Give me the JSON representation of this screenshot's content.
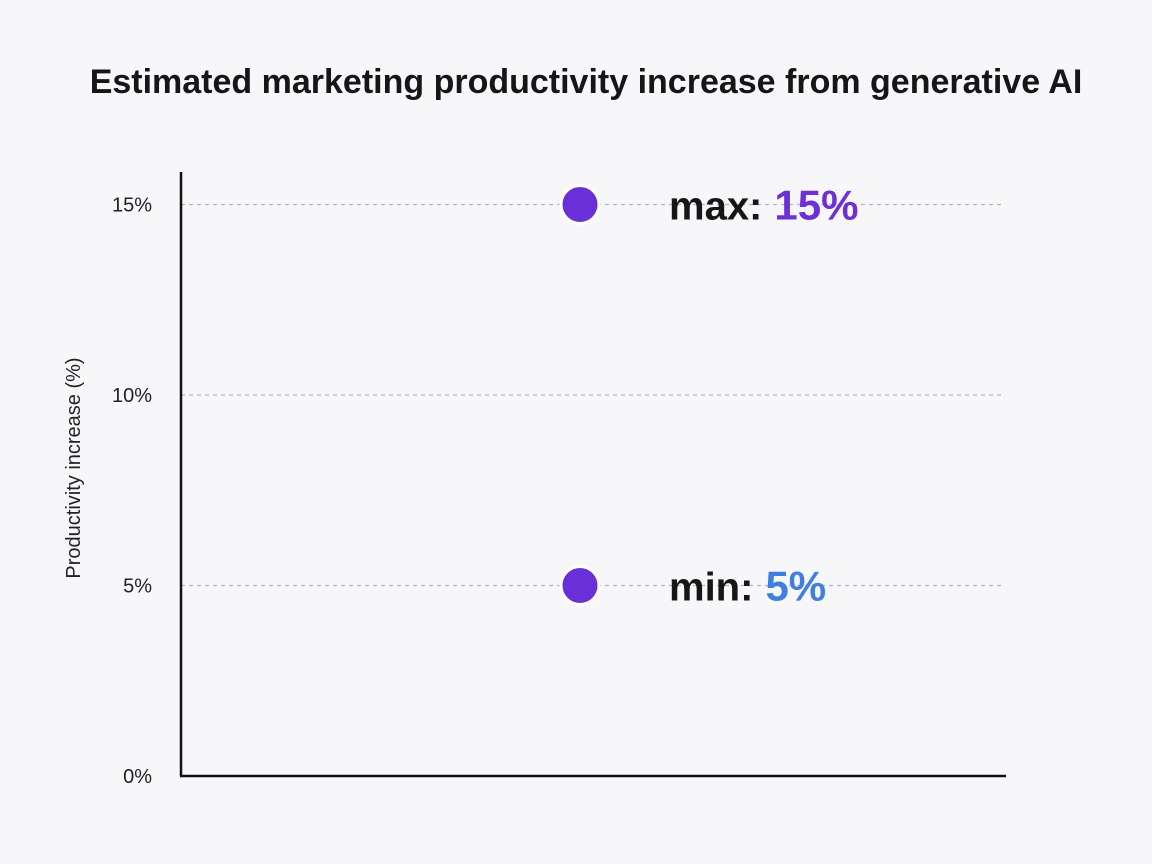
{
  "chart_data": {
    "type": "range",
    "title": "Estimated marketing productivity increase from generative AI",
    "ylabel": "Productivity increase (%)",
    "xlabel": "",
    "ylim": [
      0,
      15.5
    ],
    "yticks": [
      {
        "value": 0,
        "label": "0%"
      },
      {
        "value": 5,
        "label": "5%"
      },
      {
        "value": 10,
        "label": "10%"
      },
      {
        "value": 15,
        "label": "15%"
      }
    ],
    "grid": "dashed horizontal at 5, 10, 15",
    "range": {
      "min": 5,
      "max": 15
    },
    "annotations": [
      {
        "kind": "max",
        "label": "max:",
        "value_text": "15%",
        "value": 15,
        "color": "#6f2fd6"
      },
      {
        "kind": "min",
        "label": "min:",
        "value_text": "5%",
        "value": 5,
        "color": "#3f7fe0"
      }
    ],
    "colors": {
      "bar_top": "#6a2fd8",
      "bar_bottom": "#8a5ae6",
      "marker": "#6a2fd8",
      "axis": "#111111",
      "grid": "#b5b5bd"
    }
  }
}
